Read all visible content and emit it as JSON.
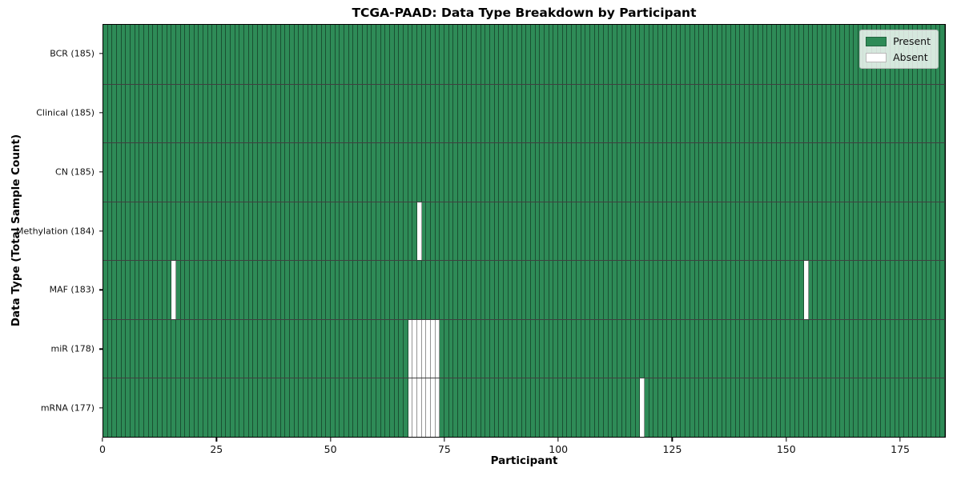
{
  "chart_data": {
    "type": "heatmap",
    "title": "TCGA-PAAD: Data Type Breakdown by Participant",
    "xlabel": "Participant",
    "ylabel": "Data Type (Total Sample Count)",
    "n_participants": 185,
    "xlim": [
      0,
      185
    ],
    "x_ticks": [
      0,
      25,
      50,
      75,
      100,
      125,
      150,
      175
    ],
    "rows": [
      {
        "label": "BCR (185)",
        "total_present": 185,
        "absent_participants": []
      },
      {
        "label": "Clinical (185)",
        "total_present": 185,
        "absent_participants": []
      },
      {
        "label": "CN (185)",
        "total_present": 185,
        "absent_participants": []
      },
      {
        "label": "Methylation (184)",
        "total_present": 184,
        "absent_participants": [
          69
        ]
      },
      {
        "label": "MAF (183)",
        "total_present": 183,
        "absent_participants": [
          15,
          154
        ]
      },
      {
        "label": "miR (178)",
        "total_present": 178,
        "absent_participants": [
          67,
          68,
          69,
          70,
          71,
          72,
          73
        ]
      },
      {
        "label": "mRNA (177)",
        "total_present": 177,
        "absent_participants": [
          67,
          68,
          69,
          70,
          71,
          72,
          73,
          118
        ]
      }
    ],
    "legend": [
      {
        "label": "Present",
        "color": "#2e8b57"
      },
      {
        "label": "Absent",
        "color": "#ffffff"
      }
    ],
    "colors": {
      "present": "#2e8b57",
      "absent": "#ffffff",
      "cell_edge": "rgba(0,0,0,0.42)",
      "row_edge": "rgba(0,0,0,0.75)",
      "axis": "#000000"
    },
    "legend_position": "upper right",
    "grid": false
  }
}
